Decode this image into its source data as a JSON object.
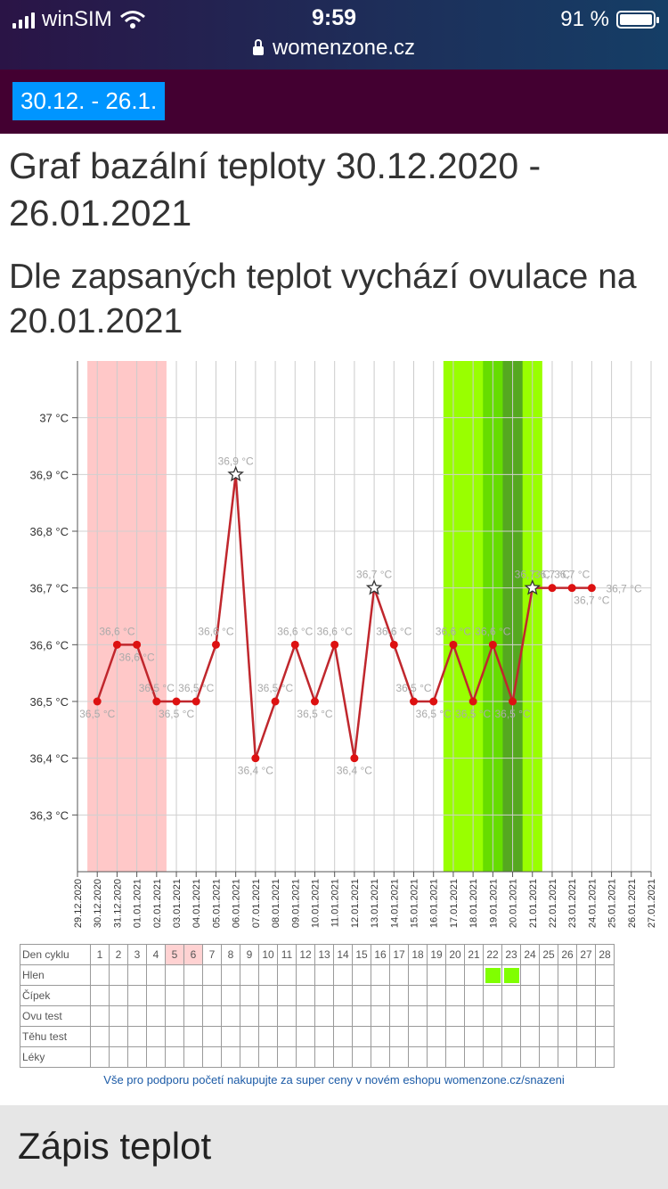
{
  "status": {
    "carrier": "winSIM",
    "time": "9:59",
    "battery": "91 %",
    "url": "womenzone.cz"
  },
  "nav": {
    "date_range": "30.12. - 26.1."
  },
  "page": {
    "title": "Graf bazální teploty 30.12.2020 - 26.01.2021",
    "subtitle": "Dle zapsaných teplot vychází ovulace na 20.01.2021"
  },
  "chart_data": {
    "type": "line",
    "x": [
      "29.12.2020",
      "30.12.2020",
      "31.12.2020",
      "01.01.2021",
      "02.01.2021",
      "03.01.2021",
      "04.01.2021",
      "05.01.2021",
      "06.01.2021",
      "07.01.2021",
      "08.01.2021",
      "09.01.2021",
      "10.01.2021",
      "11.01.2021",
      "12.01.2021",
      "13.01.2021",
      "14.01.2021",
      "15.01.2021",
      "16.01.2021",
      "17.01.2021",
      "18.01.2021",
      "19.01.2021",
      "20.01.2021",
      "21.01.2021",
      "22.01.2021",
      "23.01.2021",
      "24.01.2021",
      "25.01.2021",
      "26.01.2021",
      "27.01.2021"
    ],
    "values": [
      null,
      36.5,
      36.6,
      36.6,
      36.5,
      36.5,
      36.5,
      36.6,
      36.9,
      36.4,
      36.5,
      36.6,
      36.5,
      36.6,
      36.4,
      36.7,
      36.6,
      36.5,
      36.5,
      36.6,
      36.5,
      36.6,
      36.5,
      36.7,
      36.7,
      36.7,
      36.7,
      null,
      null,
      null
    ],
    "labels": [
      "",
      "36,5 °C",
      "36,6 °C",
      "36,6 °C",
      "36,5 °C",
      "36,5 °C",
      "36,5 °C",
      "36,6 °C",
      "36,9 °C",
      "36,4 °C",
      "36,5 °C",
      "36,6 °C",
      "36,5 °C",
      "36,6 °C",
      "36,4 °C",
      "36,7 °C",
      "36,6 °C",
      "36,5 °C",
      "36,5 °C",
      "36,6 °C",
      "36,5 °C",
      "36,6 °C",
      "36,5 °C",
      "36,7 °C",
      "36,7 °C",
      "36,7 °C",
      "36,7 °C",
      "",
      "",
      ""
    ],
    "label_pos": [
      "",
      "b",
      "t",
      "b",
      "t",
      "b",
      "t",
      "t",
      "t",
      "b",
      "t",
      "t",
      "b",
      "t",
      "b",
      "t",
      "t",
      "t",
      "b",
      "t",
      "b",
      "t",
      "b",
      "t",
      "t",
      "t",
      "b",
      "",
      "",
      ""
    ],
    "star_points": [
      8,
      15,
      23
    ],
    "dangling": {
      "x_index": 27,
      "label": "36,7 °C",
      "value": 36.7
    },
    "yticks": [
      {
        "v": 37.0,
        "t": "37 °C"
      },
      {
        "v": 36.9,
        "t": "36,9 °C"
      },
      {
        "v": 36.8,
        "t": "36,8 °C"
      },
      {
        "v": 36.7,
        "t": "36,7 °C"
      },
      {
        "v": 36.6,
        "t": "36,6 °C"
      },
      {
        "v": 36.5,
        "t": "36,5 °C"
      },
      {
        "v": 36.4,
        "t": "36,4 °C"
      },
      {
        "v": 36.3,
        "t": "36,3 °C"
      }
    ],
    "ylim": [
      36.2,
      37.1
    ],
    "bands": [
      {
        "from": 0.5,
        "to": 4.5,
        "color": "#ffc8c8"
      },
      {
        "from": 18.5,
        "to": 23.5,
        "color": "#99ff00"
      },
      {
        "from": 20.5,
        "to": 22.5,
        "color": "#66dd00"
      },
      {
        "from": 21.5,
        "to": 22.5,
        "color": "#55a820"
      }
    ],
    "line_color": "#c0272d",
    "grid": true
  },
  "cycle_table": {
    "rows": [
      "Den cyklu",
      "Hlen",
      "Čípek",
      "Ovu test",
      "Těhu test",
      "Léky"
    ],
    "days": [
      "1",
      "2",
      "3",
      "4",
      "5",
      "6",
      "7",
      "8",
      "9",
      "10",
      "11",
      "12",
      "13",
      "14",
      "15",
      "16",
      "17",
      "18",
      "19",
      "20",
      "21",
      "22",
      "23",
      "24",
      "25",
      "26",
      "27",
      "28"
    ],
    "pink_days": [
      5,
      6
    ],
    "hlen_marked": [
      22,
      23
    ]
  },
  "promo": "Vše pro podporu početí nakupujte za super ceny v novém eshopu womenzone.cz/snazeni",
  "footer": {
    "title": "Zápis teplot"
  }
}
